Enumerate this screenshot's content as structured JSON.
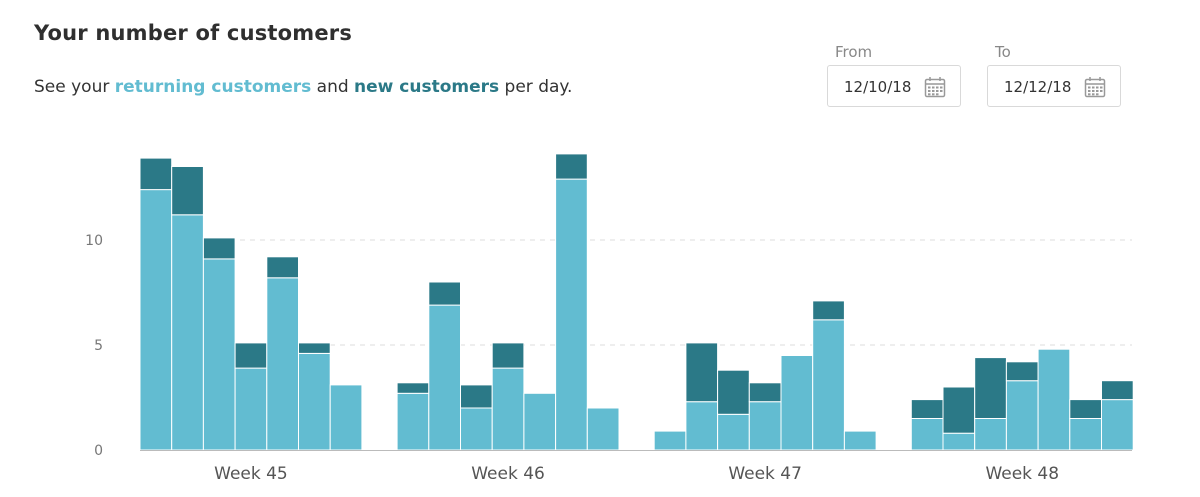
{
  "header": {
    "title": "Your number of customers",
    "subtitle_prefix": "See your ",
    "returning_label": "returning customers",
    "subtitle_mid": " and ",
    "new_label": "new customers",
    "subtitle_suffix": " per day."
  },
  "date_range": {
    "from_label": "From",
    "from_value": "12/10/18",
    "to_label": "To",
    "to_value": "12/12/18",
    "icon": "calendar-icon"
  },
  "colors": {
    "returning": "#62bcd1",
    "new": "#2b7987",
    "grid": "#dddddd",
    "axis": "#bbbbbb"
  },
  "chart_data": {
    "type": "bar",
    "stacked": true,
    "ylim": [
      0,
      14
    ],
    "yticks": [
      0,
      5,
      10
    ],
    "grid": true,
    "categories": [
      "Week 45",
      "Week 46",
      "Week 47",
      "Week 48"
    ],
    "series": [
      {
        "key": "returning",
        "name": "returning customers",
        "values": [
          [
            12.4,
            11.2,
            9.1,
            3.9,
            8.2,
            4.6,
            3.1
          ],
          [
            2.7,
            6.9,
            2.0,
            3.9,
            2.7,
            12.9,
            2.0
          ],
          [
            0.9,
            2.3,
            1.7,
            2.3,
            4.5,
            6.2,
            0.9
          ],
          [
            1.5,
            0.8,
            1.5,
            3.3,
            4.8,
            1.5,
            2.4
          ]
        ]
      },
      {
        "key": "new",
        "name": "new customers",
        "values": [
          [
            1.5,
            2.3,
            1.0,
            1.2,
            1.0,
            0.5,
            0
          ],
          [
            0.5,
            1.1,
            1.1,
            1.2,
            0,
            1.2,
            0
          ],
          [
            0,
            2.8,
            2.1,
            0.9,
            0,
            0.9,
            0
          ],
          [
            0.9,
            2.2,
            2.9,
            0.9,
            0,
            0.9,
            0.9
          ]
        ]
      }
    ]
  }
}
